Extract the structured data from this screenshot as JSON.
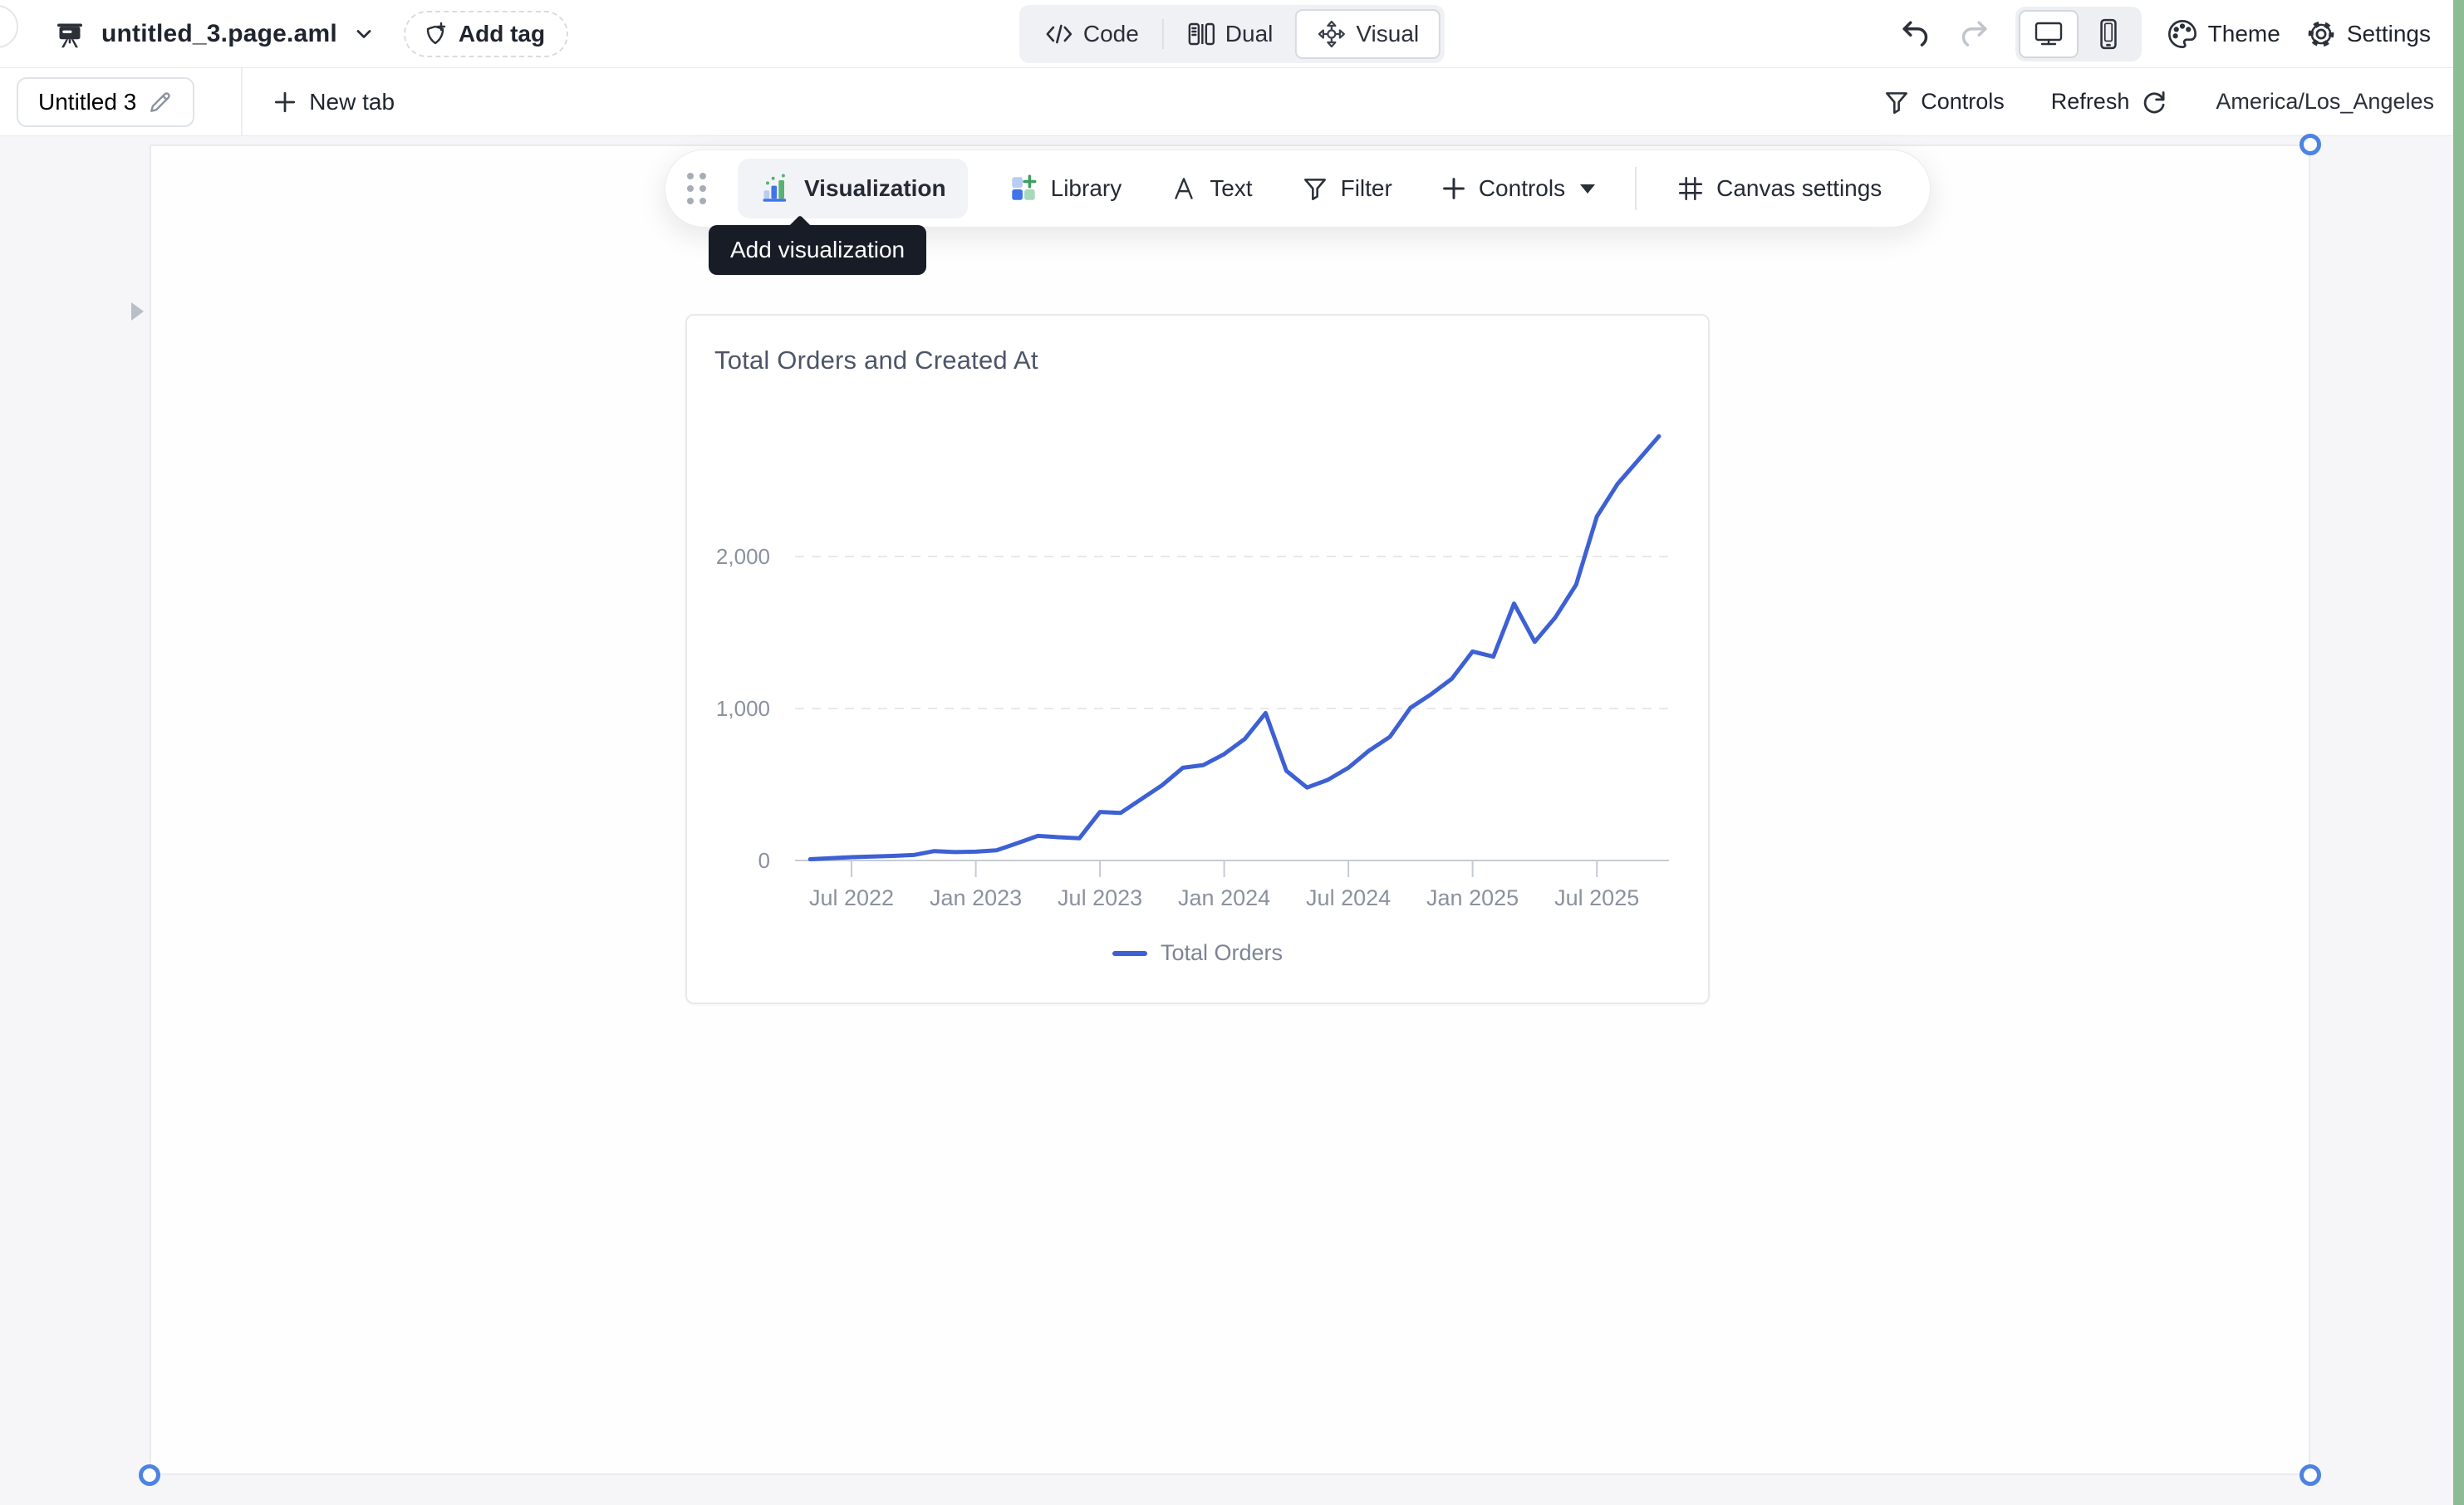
{
  "header": {
    "file_name": "untitled_3.page.aml",
    "add_tag_label": "Add tag",
    "view_modes": {
      "code": "Code",
      "dual": "Dual",
      "visual": "Visual",
      "active": "Visual"
    },
    "theme_label": "Theme",
    "settings_label": "Settings"
  },
  "tab_bar": {
    "tab_label": "Untitled 3",
    "new_tab_label": "New tab",
    "controls_label": "Controls",
    "refresh_label": "Refresh",
    "timezone": "America/Los_Angeles"
  },
  "toolbar": {
    "visualization_label": "Visualization",
    "library_label": "Library",
    "text_label": "Text",
    "filter_label": "Filter",
    "controls_label": "Controls",
    "canvas_settings_label": "Canvas settings"
  },
  "tooltip": {
    "text": "Add visualization"
  },
  "chart_card": {
    "title": "Total Orders and Created At",
    "legend_label": "Total Orders"
  },
  "colors": {
    "accent_blue": "#3d60d4",
    "handle_blue": "#4d83e3",
    "tooltip_bg": "#171c26",
    "axis_gray": "#c6cbd2",
    "grid_gray": "#e7e9ec",
    "label_gray": "#8a919f",
    "green_strip": "#8cbb94"
  },
  "chart_data": {
    "type": "line",
    "title": "Total Orders and Created At",
    "xlabel": "",
    "ylabel": "",
    "ylim": [
      0,
      2900
    ],
    "grid": "horizontal-dashed",
    "legend_position": "bottom",
    "xticks": [
      "Jul 2022",
      "Jan 2023",
      "Jul 2023",
      "Jan 2024",
      "Jul 2024",
      "Jan 2025",
      "Jul 2025"
    ],
    "yticks": [
      0,
      1000,
      2000
    ],
    "ytick_labels": [
      "0",
      "1,000",
      "2,000"
    ],
    "x": [
      "May 2022",
      "Jun 2022",
      "Jul 2022",
      "Aug 2022",
      "Sep 2022",
      "Oct 2022",
      "Nov 2022",
      "Dec 2022",
      "Jan 2023",
      "Feb 2023",
      "Mar 2023",
      "Apr 2023",
      "May 2023",
      "Jun 2023",
      "Jul 2023",
      "Aug 2023",
      "Sep 2023",
      "Oct 2023",
      "Nov 2023",
      "Dec 2023",
      "Jan 2024",
      "Feb 2024",
      "Mar 2024",
      "Apr 2024",
      "May 2024",
      "Jun 2024",
      "Jul 2024",
      "Aug 2024",
      "Sep 2024",
      "Oct 2024",
      "Nov 2024",
      "Dec 2024",
      "Jan 2025",
      "Feb 2025",
      "Mar 2025",
      "Apr 2025",
      "May 2025",
      "Jun 2025",
      "Jul 2025",
      "Aug 2025",
      "Sep 2025",
      "Oct 2025"
    ],
    "series": [
      {
        "name": "Total Orders",
        "color": "#3d60d4",
        "values": [
          8,
          15,
          22,
          26,
          30,
          36,
          62,
          55,
          58,
          67,
          113,
          162,
          153,
          146,
          319,
          313,
          404,
          495,
          610,
          628,
          700,
          800,
          970,
          590,
          480,
          530,
          610,
          723,
          813,
          1005,
          1094,
          1196,
          1375,
          1341,
          1690,
          1438,
          1600,
          1814,
          2263,
          2477,
          2634,
          2791
        ]
      }
    ]
  }
}
